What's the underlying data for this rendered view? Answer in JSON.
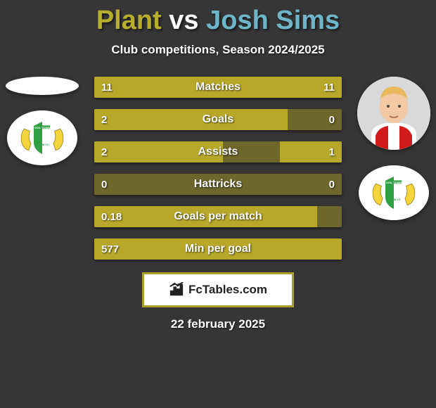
{
  "header": {
    "title_parts": [
      {
        "text": "Plant",
        "color": "#b8ae2d"
      },
      {
        "text": " vs ",
        "color": "#ffffff"
      },
      {
        "text": "Josh Sims",
        "color": "#6fb5c9"
      }
    ],
    "subtitle": "Club competitions, Season 2024/2025"
  },
  "colors": {
    "background": "#363636",
    "left_player": "#b8ae2d",
    "right_player": "#6fb5c9",
    "bar_track": "#6d672c",
    "bar_fill_left": "#b8a82a",
    "bar_fill_right": "#b8a82a",
    "attribution_border": "#a8a02a"
  },
  "stats": [
    {
      "name": "Matches",
      "left_value": "11",
      "right_value": "11",
      "left_pct": 50,
      "right_pct": 50
    },
    {
      "name": "Goals",
      "left_value": "2",
      "right_value": "0",
      "left_pct": 78,
      "right_pct": 0
    },
    {
      "name": "Assists",
      "left_value": "2",
      "right_value": "1",
      "left_pct": 52,
      "right_pct": 25
    },
    {
      "name": "Hattricks",
      "left_value": "0",
      "right_value": "0",
      "left_pct": 0,
      "right_pct": 0
    },
    {
      "name": "Goals per match",
      "left_value": "0.18",
      "right_value": "",
      "left_pct": 90,
      "right_pct": 0
    },
    {
      "name": "Min per goal",
      "left_value": "577",
      "right_value": "",
      "left_pct": 100,
      "right_pct": 0
    }
  ],
  "attribution": {
    "text": "FcTables.com"
  },
  "date": "22 february 2025",
  "left_side": {
    "player_name": "Plant",
    "club_name": "Yeovil Town"
  },
  "right_side": {
    "player_name": "Josh Sims",
    "club_name": "Yeovil Town"
  }
}
